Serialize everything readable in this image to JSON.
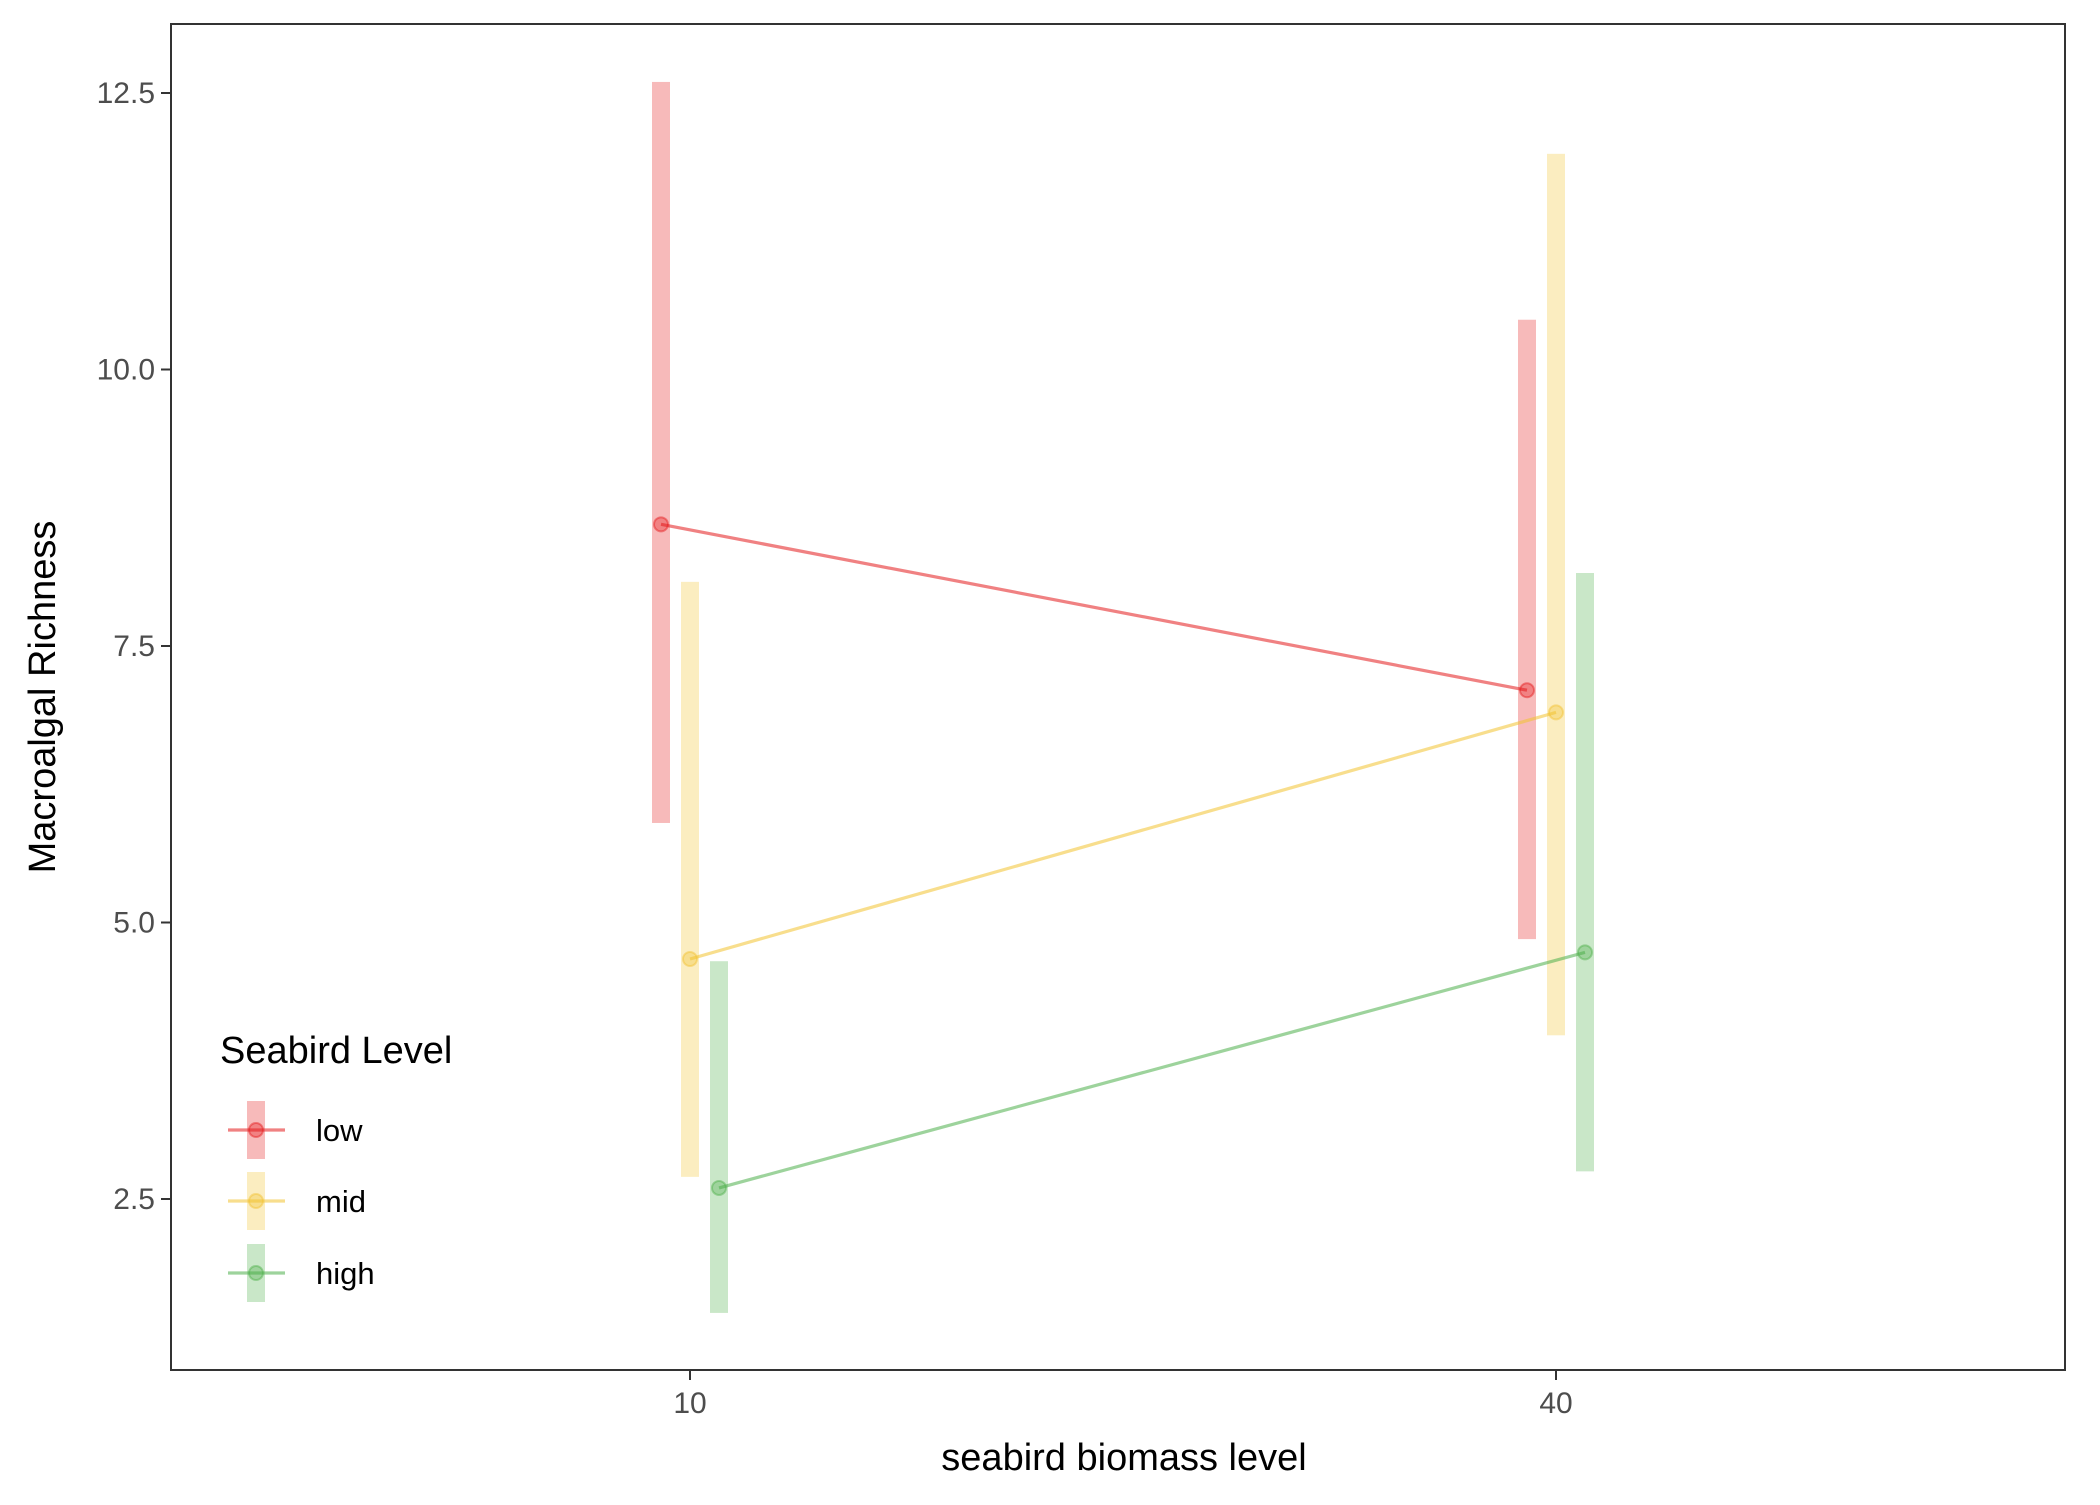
{
  "chart_data": {
    "type": "line",
    "xlabel": "seabird biomass level",
    "ylabel": "Macroalgal Richness",
    "categories": [
      "10",
      "40"
    ],
    "ylim": [
      1.0,
      13.0
    ],
    "yticks": [
      "2.5",
      "5.0",
      "7.5",
      "10.0",
      "12.5"
    ],
    "ytick_values": [
      2.5,
      5.0,
      7.5,
      10.0,
      12.5
    ],
    "grid": false,
    "legend": {
      "title": "Seabird Level",
      "position": "bottom-left"
    },
    "series": [
      {
        "name": "low",
        "color": "#E41A1C",
        "points": [
          {
            "x": "10",
            "y": 8.6,
            "ymin": 5.9,
            "ymax": 12.6
          },
          {
            "x": "40",
            "y": 7.1,
            "ymin": 4.85,
            "ymax": 10.45
          }
        ]
      },
      {
        "name": "mid",
        "color": "#F2C230",
        "points": [
          {
            "x": "10",
            "y": 4.67,
            "ymin": 2.7,
            "ymax": 8.08
          },
          {
            "x": "40",
            "y": 6.9,
            "ymin": 3.98,
            "ymax": 11.95
          }
        ]
      },
      {
        "name": "high",
        "color": "#4DAF4A",
        "points": [
          {
            "x": "10",
            "y": 2.6,
            "ymin": 1.47,
            "ymax": 4.65
          },
          {
            "x": "40",
            "y": 4.73,
            "ymin": 2.75,
            "ymax": 8.16
          }
        ]
      }
    ]
  }
}
